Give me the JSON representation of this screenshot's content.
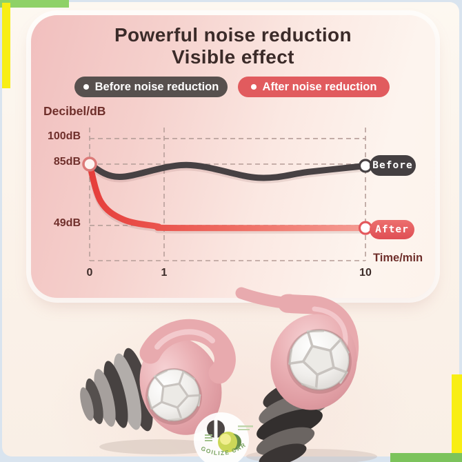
{
  "page": {
    "bg_color": "#d9e4ef",
    "frame_color": "#fbf2e9",
    "accent_green_top": "#8ed167",
    "accent_green_bottom": "#7cc35c",
    "accent_yellow": "#f8ee14"
  },
  "header": {
    "title_line1": "Powerful noise reduction",
    "title_line2": "Visible effect"
  },
  "legend": {
    "before": {
      "label": "Before noise reduction",
      "color": "#57504e"
    },
    "after": {
      "label": "After noise reduction",
      "color": "#e15b5e"
    }
  },
  "chart_data": {
    "type": "line",
    "title": "Powerful noise reduction — Visible effect",
    "ylabel": "Decibel/dB",
    "xlabel": "Time/min",
    "grid": "dashed",
    "grid_color": "#b8a09b",
    "yticks": [
      {
        "db": 100,
        "label": "100dB"
      },
      {
        "db": 85,
        "label": "85dB"
      },
      {
        "db": 49,
        "label": "49dB"
      }
    ],
    "xticks": [
      {
        "t": 0,
        "label": "0"
      },
      {
        "t": 1,
        "label": "1"
      },
      {
        "t": 10,
        "label": "10"
      }
    ],
    "start_value_db": 85,
    "series": [
      {
        "name": "Before",
        "color": "#474143",
        "points": [
          [
            0,
            85
          ],
          [
            0.4,
            77.5
          ],
          [
            2.0,
            84.5
          ],
          [
            5.2,
            77
          ],
          [
            7.5,
            80.5
          ],
          [
            10,
            84
          ]
        ]
      },
      {
        "name": "After",
        "color": "#e4585c",
        "points": [
          [
            0,
            85
          ],
          [
            0.15,
            63
          ],
          [
            0.45,
            52.5
          ],
          [
            0.9,
            48.5
          ],
          [
            1.6,
            47.5
          ],
          [
            10,
            47.5
          ]
        ]
      }
    ]
  },
  "watermark": {
    "text": "GOILIZE CARE"
  }
}
